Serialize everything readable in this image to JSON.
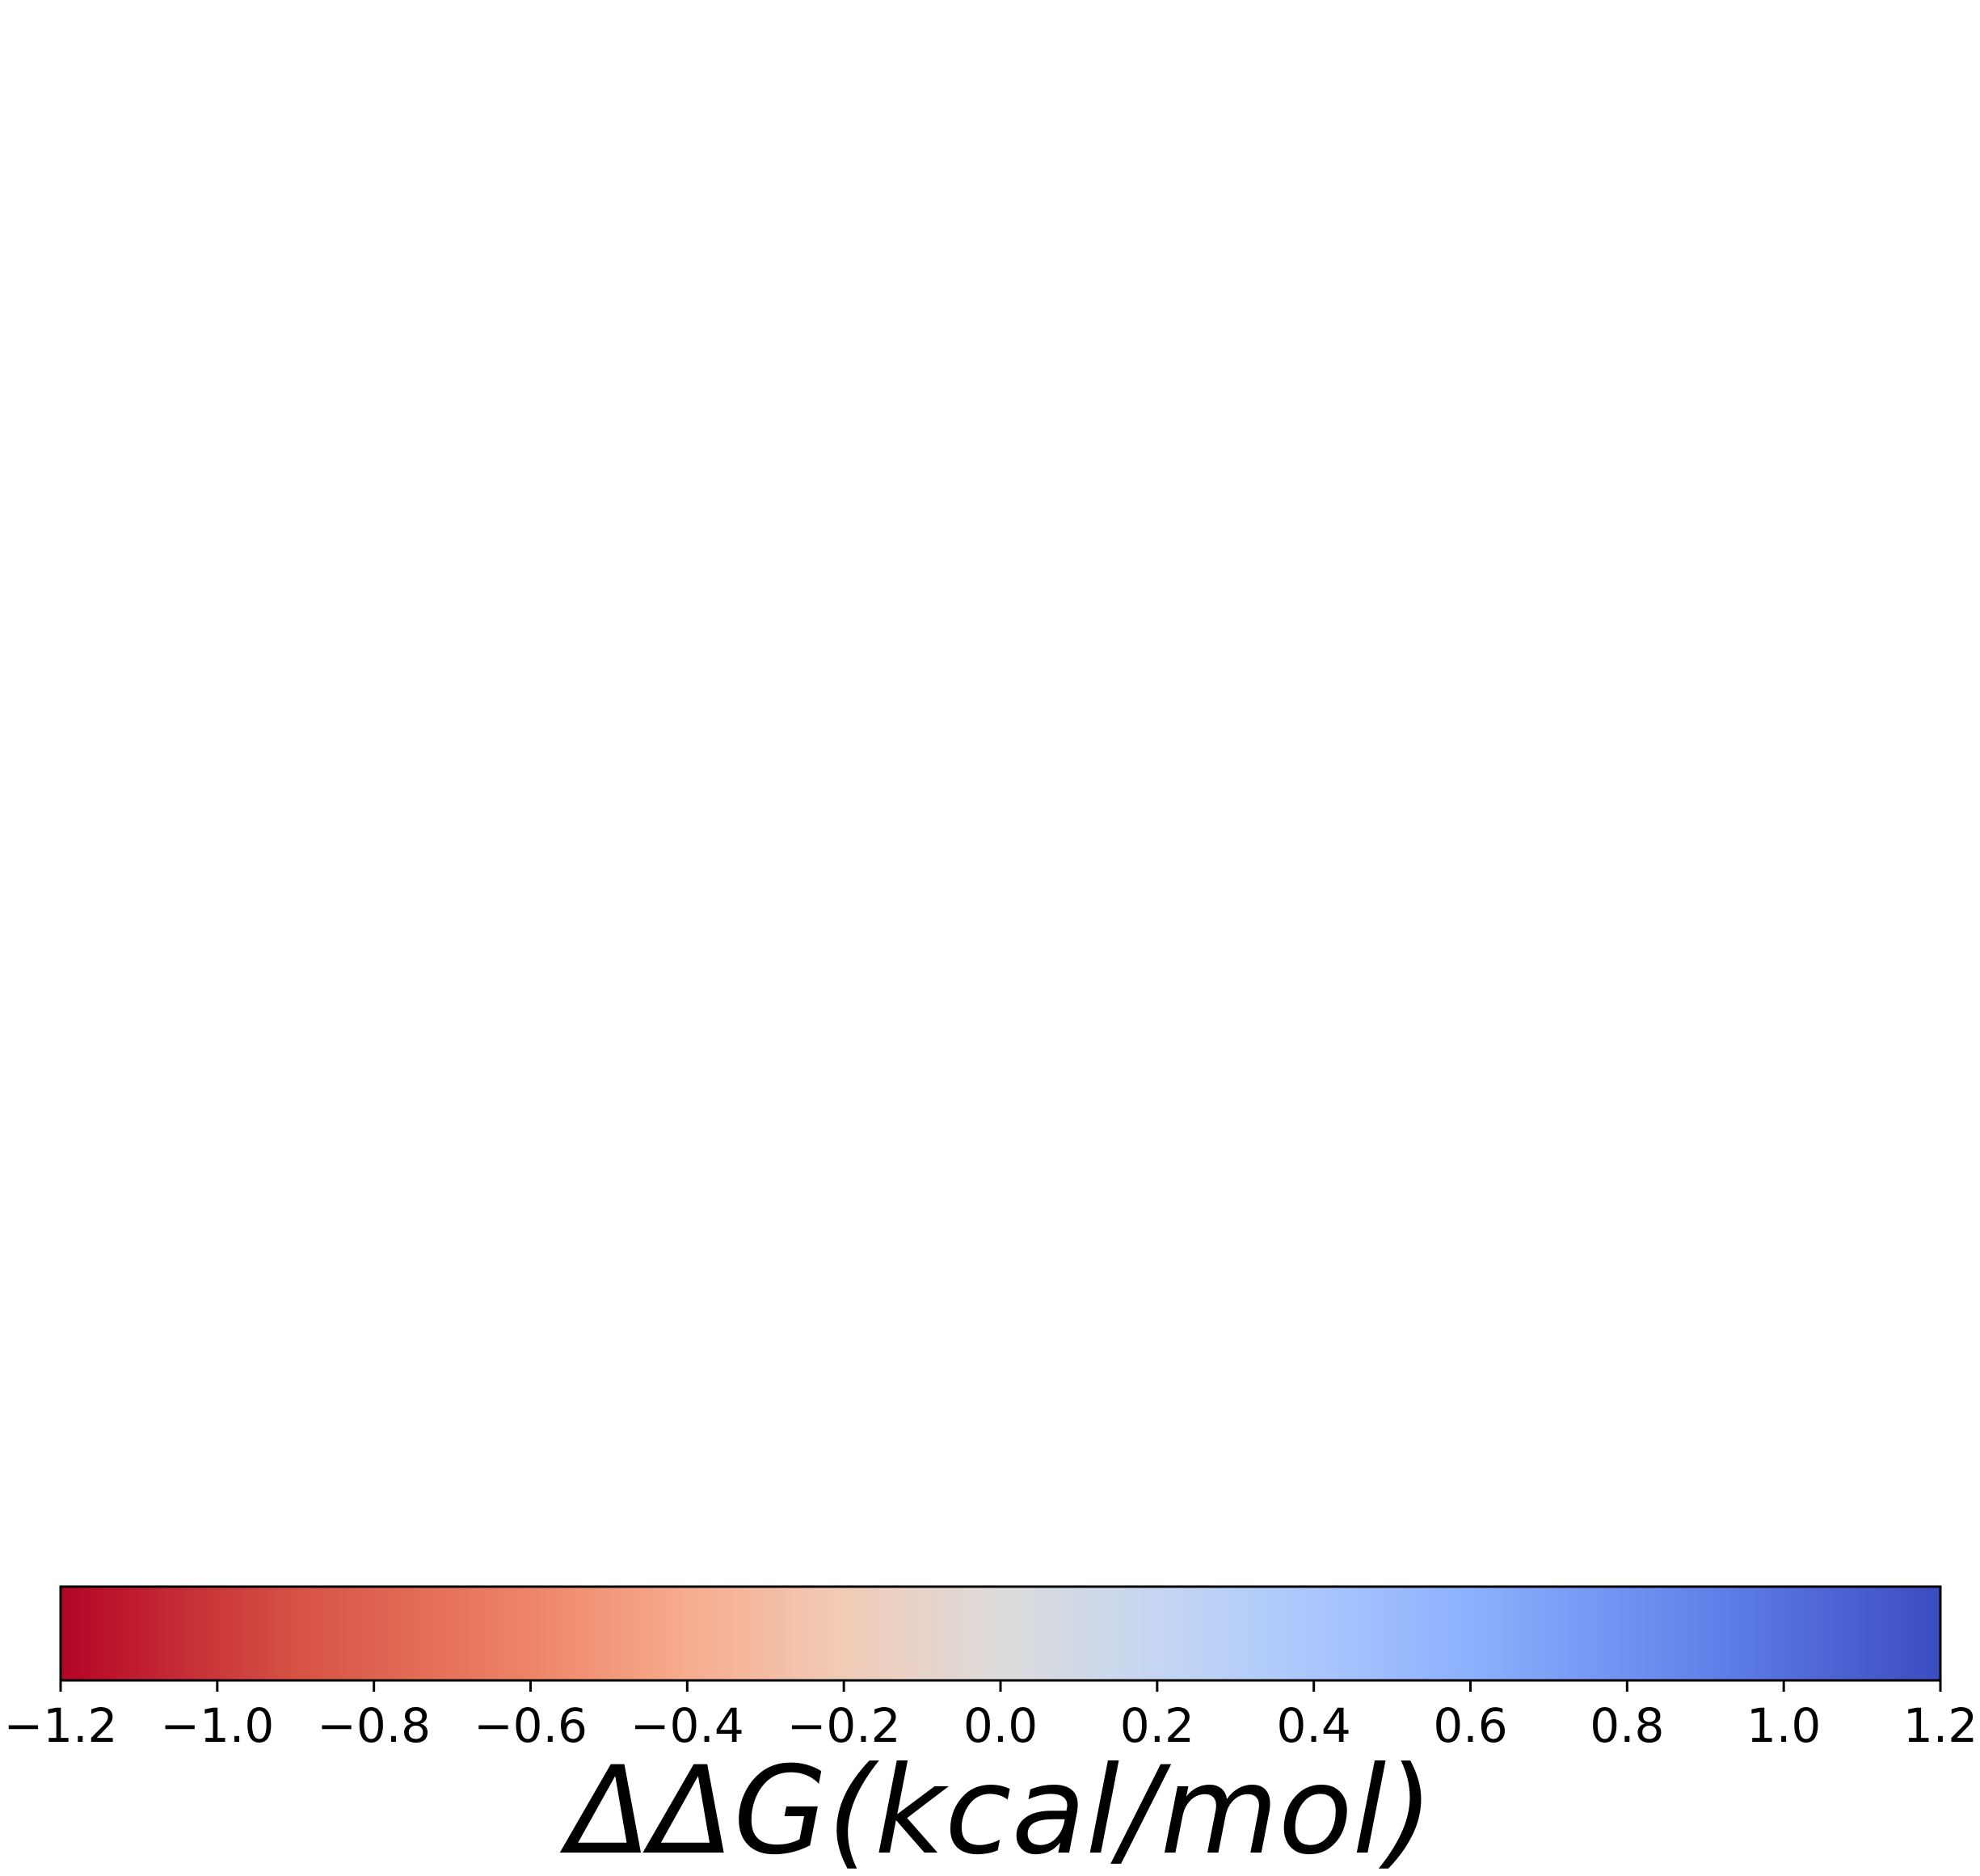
{
  "chart_data": {
    "type": "heatmap",
    "subtype": "colorbar",
    "orientation": "horizontal",
    "colormap": "coolwarm (reversed: red = negative, blue = positive)",
    "range": [
      -1.2,
      1.2
    ],
    "ticks": [
      -1.2,
      -1.0,
      -0.8,
      -0.6,
      -0.4,
      -0.2,
      0.0,
      0.2,
      0.4,
      0.6,
      0.8,
      1.0,
      1.2
    ],
    "tick_labels": [
      "−1.2",
      "−1.0",
      "−0.8",
      "−0.6",
      "−0.4",
      "−0.2",
      "0.0",
      "0.2",
      "0.4",
      "0.6",
      "0.8",
      "1.0",
      "1.2"
    ],
    "xlabel": "ΔΔG(kcal/mol)",
    "color_stops": [
      {
        "value": -1.2,
        "color": "#b40426"
      },
      {
        "value": -0.9,
        "color": "#d65244"
      },
      {
        "value": -0.6,
        "color": "#ee8468"
      },
      {
        "value": -0.4,
        "color": "#f7ac8e"
      },
      {
        "value": -0.2,
        "color": "#f2cbb7"
      },
      {
        "value": 0.0,
        "color": "#dddcdc"
      },
      {
        "value": 0.2,
        "color": "#c5d6f2"
      },
      {
        "value": 0.4,
        "color": "#aac7fd"
      },
      {
        "value": 0.6,
        "color": "#8db0fe"
      },
      {
        "value": 0.9,
        "color": "#6282ea"
      },
      {
        "value": 1.2,
        "color": "#3b4cc0"
      }
    ]
  }
}
